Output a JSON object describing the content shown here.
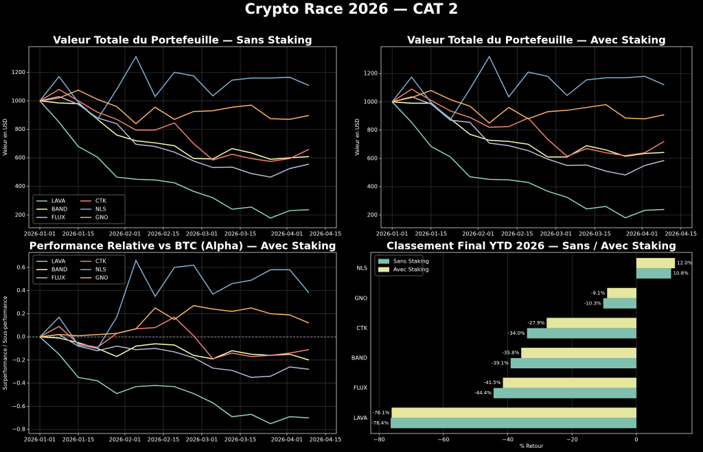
{
  "title": "Crypto Race 2026 — CAT 2",
  "chart_data": [
    {
      "type": "line",
      "title": "Valeur Totale du Portefeuille — Sans Staking",
      "ylabel": "Valeur en USD",
      "grid": true,
      "legend": "lower left",
      "legend_columns": 2,
      "x": [
        "2026-01-01",
        "2026-01-08",
        "2026-01-15",
        "2026-01-22",
        "2026-01-29",
        "2026-02-05",
        "2026-02-12",
        "2026-02-19",
        "2026-02-26",
        "2026-03-05",
        "2026-03-12",
        "2026-03-19",
        "2026-03-26",
        "2026-04-02",
        "2026-04-09"
      ],
      "xlim": [
        "2025-12-28",
        "2026-04-19"
      ],
      "xticks": [
        "2026-01-01",
        "2026-01-15",
        "2026-02-01",
        "2026-02-15",
        "2026-03-01",
        "2026-03-15",
        "2026-04-01",
        "2026-04-15"
      ],
      "ylim": [
        110,
        1380
      ],
      "yticks": [
        200,
        400,
        600,
        800,
        1000,
        1200
      ],
      "series": [
        {
          "name": "LAVA",
          "color": "#8dd3c7",
          "values": [
            1000,
            850,
            680,
            605,
            465,
            450,
            445,
            425,
            365,
            320,
            240,
            255,
            178,
            230,
            236
          ]
        },
        {
          "name": "BAND",
          "color": "#feffb3",
          "values": [
            1000,
            985,
            980,
            870,
            760,
            720,
            705,
            685,
            595,
            592,
            665,
            635,
            590,
            600,
            609
          ]
        },
        {
          "name": "FLUX",
          "color": "#bfbbd9",
          "values": [
            1000,
            1030,
            975,
            880,
            840,
            695,
            680,
            640,
            578,
            532,
            535,
            490,
            465,
            525,
            556
          ]
        },
        {
          "name": "CTK",
          "color": "#fa8174",
          "values": [
            1000,
            1080,
            1000,
            920,
            870,
            795,
            795,
            845,
            700,
            585,
            625,
            595,
            575,
            595,
            660
          ]
        },
        {
          "name": "NLS",
          "color": "#81b1d2",
          "values": [
            1000,
            1170,
            990,
            870,
            1080,
            1310,
            1030,
            1200,
            1175,
            1035,
            1145,
            1160,
            1160,
            1165,
            1108
          ]
        },
        {
          "name": "GNO",
          "color": "#fdb462",
          "values": [
            1000,
            1020,
            1075,
            1010,
            960,
            840,
            955,
            870,
            925,
            930,
            955,
            970,
            875,
            870,
            897
          ]
        }
      ]
    },
    {
      "type": "line",
      "title": "Valeur Totale du Portefeuille — Avec Staking",
      "ylabel": "Valeur en USD",
      "grid": true,
      "x": [
        "2026-01-01",
        "2026-01-08",
        "2026-01-15",
        "2026-01-22",
        "2026-01-29",
        "2026-02-05",
        "2026-02-12",
        "2026-02-19",
        "2026-02-26",
        "2026-03-05",
        "2026-03-12",
        "2026-03-19",
        "2026-03-26",
        "2026-04-02",
        "2026-04-09"
      ],
      "xlim": [
        "2025-12-28",
        "2026-04-19"
      ],
      "xticks": [
        "2026-01-01",
        "2026-01-15",
        "2026-02-01",
        "2026-02-15",
        "2026-03-01",
        "2026-03-15",
        "2026-04-01",
        "2026-04-15"
      ],
      "ylim": [
        110,
        1390
      ],
      "yticks": [
        200,
        400,
        600,
        800,
        1000,
        1200
      ],
      "series": [
        {
          "name": "LAVA",
          "color": "#8dd3c7",
          "values": [
            1000,
            855,
            685,
            610,
            470,
            452,
            448,
            430,
            368,
            325,
            243,
            260,
            180,
            233,
            239
          ]
        },
        {
          "name": "BAND",
          "color": "#feffb3",
          "values": [
            1000,
            990,
            990,
            880,
            770,
            728,
            720,
            700,
            610,
            610,
            690,
            660,
            615,
            635,
            642
          ]
        },
        {
          "name": "FLUX",
          "color": "#bfbbd9",
          "values": [
            1000,
            1035,
            985,
            870,
            855,
            708,
            690,
            655,
            595,
            550,
            553,
            510,
            483,
            550,
            585
          ]
        },
        {
          "name": "CTK",
          "color": "#fa8174",
          "values": [
            1000,
            1090,
            1010,
            935,
            890,
            820,
            825,
            885,
            735,
            615,
            670,
            640,
            620,
            640,
            721
          ]
        },
        {
          "name": "NLS",
          "color": "#81b1d2",
          "values": [
            1000,
            1175,
            995,
            875,
            1090,
            1320,
            1035,
            1210,
            1180,
            1045,
            1155,
            1170,
            1170,
            1180,
            1120
          ]
        },
        {
          "name": "GNO",
          "color": "#fdb462",
          "values": [
            1000,
            1030,
            1080,
            1015,
            970,
            850,
            960,
            880,
            930,
            940,
            960,
            980,
            885,
            880,
            909
          ]
        }
      ]
    },
    {
      "type": "line",
      "title": "Performance Relative vs BTC (Alpha) — Avec Staking",
      "ylabel": "Surperformance / Sous-performance",
      "grid": true,
      "legend": "upper left",
      "legend_columns": 2,
      "hline": 0,
      "x": [
        "2026-01-01",
        "2026-01-08",
        "2026-01-15",
        "2026-01-22",
        "2026-01-29",
        "2026-02-05",
        "2026-02-12",
        "2026-02-19",
        "2026-02-26",
        "2026-03-05",
        "2026-03-12",
        "2026-03-19",
        "2026-03-26",
        "2026-04-02",
        "2026-04-09"
      ],
      "xlim": [
        "2025-12-28",
        "2026-04-19"
      ],
      "xticks": [
        "2026-01-01",
        "2026-01-15",
        "2026-02-01",
        "2026-02-15",
        "2026-03-01",
        "2026-03-15",
        "2026-04-01",
        "2026-04-15"
      ],
      "ylim": [
        -0.835,
        0.73
      ],
      "yticks": [
        {
          "value": -0.8,
          "label": "−0.8"
        },
        {
          "value": -0.6,
          "label": "−0.6"
        },
        {
          "value": -0.4,
          "label": "−0.4"
        },
        {
          "value": -0.2,
          "label": "−0.2"
        },
        {
          "value": 0,
          "label": "0.0"
        },
        0.2,
        0.4,
        0.6
      ],
      "series": [
        {
          "name": "LAVA",
          "color": "#8dd3c7",
          "values": [
            0,
            -0.15,
            -0.35,
            -0.38,
            -0.49,
            -0.43,
            -0.42,
            -0.43,
            -0.49,
            -0.57,
            -0.69,
            -0.67,
            -0.75,
            -0.69,
            -0.7
          ]
        },
        {
          "name": "BAND",
          "color": "#feffb3",
          "values": [
            0,
            -0.01,
            -0.05,
            -0.1,
            -0.17,
            -0.08,
            -0.06,
            -0.07,
            -0.16,
            -0.19,
            -0.12,
            -0.15,
            -0.16,
            -0.15,
            -0.2
          ]
        },
        {
          "name": "FLUX",
          "color": "#bfbbd9",
          "values": [
            0,
            0.02,
            -0.08,
            -0.12,
            -0.08,
            -0.11,
            -0.1,
            -0.13,
            -0.18,
            -0.27,
            -0.29,
            -0.35,
            -0.34,
            -0.26,
            -0.28
          ]
        },
        {
          "name": "CTK",
          "color": "#fa8174",
          "values": [
            0,
            0.09,
            -0.06,
            -0.09,
            0.03,
            0.07,
            0.08,
            0.17,
            0.01,
            -0.19,
            -0.14,
            -0.17,
            -0.16,
            -0.14,
            -0.11
          ]
        },
        {
          "name": "NLS",
          "color": "#81b1d2",
          "values": [
            0,
            0.17,
            -0.07,
            -0.1,
            0.17,
            0.66,
            0.35,
            0.6,
            0.62,
            0.37,
            0.46,
            0.49,
            0.58,
            0.58,
            0.38
          ]
        },
        {
          "name": "GNO",
          "color": "#fdb462",
          "values": [
            0,
            0.02,
            0.01,
            0.02,
            0.03,
            0.07,
            0.25,
            0.15,
            0.27,
            0.24,
            0.22,
            0.25,
            0.2,
            0.19,
            0.12
          ]
        }
      ]
    },
    {
      "type": "barh",
      "title": "Classement Final YTD 2026 — Sans / Avec Staking",
      "xlabel": "% Retour",
      "grid": true,
      "legend": "upper left",
      "legend_columns": 1,
      "categories": [
        "LAVA",
        "FLUX",
        "BAND",
        "CTK",
        "GNO",
        "NLS"
      ],
      "xlim": [
        -82.6,
        17.3
      ],
      "xticks": [
        {
          "value": -80,
          "label": "−80"
        },
        {
          "value": -60,
          "label": "−60"
        },
        {
          "value": -40,
          "label": "−40"
        },
        {
          "value": -20,
          "label": "−20"
        },
        0
      ],
      "series": [
        {
          "name": "Sans Staking",
          "color": "#7fbfae",
          "values": [
            -76.4,
            -44.4,
            -39.1,
            -34.0,
            -10.3,
            10.8
          ],
          "value_labels": [
            "-76.4%",
            "-44.4%",
            "-39.1%",
            "-34.0%",
            "-10.3%",
            "10.8%"
          ]
        },
        {
          "name": "Avec Staking",
          "color": "#e6e69e",
          "values": [
            -76.1,
            -41.5,
            -35.8,
            -27.9,
            -9.1,
            12.0
          ],
          "value_labels": [
            "-76.1%",
            "-41.5%",
            "-35.8%",
            "-27.9%",
            "-9.1%",
            "12.0%"
          ]
        }
      ]
    }
  ]
}
